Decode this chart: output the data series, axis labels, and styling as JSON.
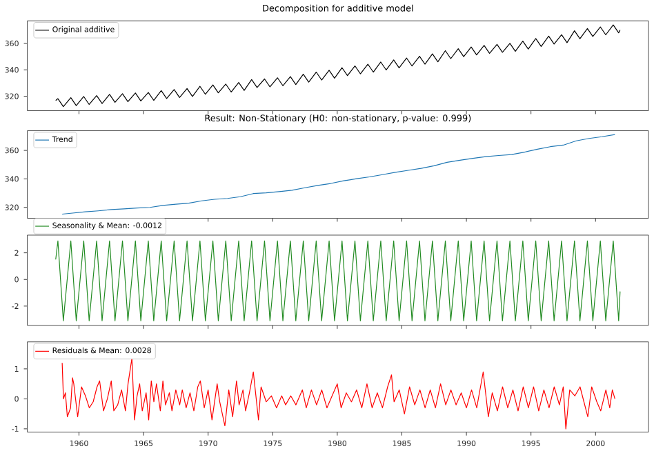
{
  "chart_data": [
    {
      "type": "line",
      "title": "Decomposition for additive model",
      "legend": "top left",
      "tick_labels": "y",
      "xlim": [
        1956.0,
        2004.1
      ],
      "ylim": [
        309.1,
        377.1
      ],
      "xticks": [
        1960,
        1965,
        1970,
        1975,
        1980,
        1985,
        1990,
        1995,
        2000
      ],
      "yticks": [
        320,
        340,
        360
      ],
      "x": [
        1958.2,
        1958.37,
        1958.79,
        1959.37,
        1959.79,
        1960.37,
        1960.79,
        1961.37,
        1961.79,
        1962.37,
        1962.79,
        1963.37,
        1963.79,
        1964.37,
        1964.79,
        1965.37,
        1965.79,
        1966.37,
        1966.79,
        1967.37,
        1967.79,
        1968.37,
        1968.79,
        1969.37,
        1969.79,
        1970.37,
        1970.79,
        1971.37,
        1971.79,
        1972.37,
        1972.79,
        1973.37,
        1973.79,
        1974.37,
        1974.79,
        1975.37,
        1975.79,
        1976.37,
        1976.79,
        1977.37,
        1977.79,
        1978.37,
        1978.79,
        1979.37,
        1979.79,
        1980.37,
        1980.79,
        1981.37,
        1981.79,
        1982.37,
        1982.79,
        1983.37,
        1983.79,
        1984.37,
        1984.79,
        1985.37,
        1985.79,
        1986.37,
        1986.79,
        1987.37,
        1987.79,
        1988.37,
        1988.79,
        1989.37,
        1989.79,
        1990.37,
        1990.79,
        1991.37,
        1991.79,
        1992.37,
        1992.79,
        1993.37,
        1993.79,
        1994.37,
        1994.79,
        1995.37,
        1995.79,
        1996.37,
        1996.79,
        1997.37,
        1997.79,
        1998.37,
        1998.79,
        1999.37,
        1999.79,
        2000.37,
        2000.79,
        2001.37,
        2001.79,
        2001.9
      ],
      "series": [
        {
          "name": "Original additive",
          "color": "#000000",
          "values": [
            316.8,
            318.2,
            312.2,
            318.9,
            312.9,
            319.8,
            313.8,
            320.5,
            314.5,
            321.4,
            315.4,
            321.9,
            315.9,
            322.5,
            316.5,
            322.9,
            316.9,
            324.3,
            318.3,
            325.1,
            319.1,
            325.9,
            319.9,
            327.5,
            321.5,
            328.6,
            322.6,
            329.2,
            323.2,
            330.4,
            324.4,
            332.6,
            326.6,
            333.1,
            327.1,
            334.0,
            328.0,
            334.9,
            328.9,
            336.7,
            330.7,
            338.3,
            332.3,
            339.7,
            333.7,
            341.6,
            335.6,
            343.0,
            337.0,
            344.3,
            338.3,
            345.9,
            339.9,
            347.5,
            341.5,
            348.9,
            342.9,
            350.3,
            344.3,
            352.1,
            346.1,
            354.5,
            348.5,
            356.0,
            350.0,
            357.3,
            351.3,
            358.5,
            352.5,
            359.3,
            353.3,
            360.0,
            354.0,
            361.7,
            355.7,
            363.7,
            357.7,
            365.5,
            359.5,
            366.6,
            360.6,
            369.6,
            363.6,
            371.3,
            365.3,
            372.5,
            366.5,
            374.0,
            368.0,
            370.2
          ]
        }
      ]
    },
    {
      "type": "line",
      "title": "Result: Non-Stationary (H0: non-stationary, p-value: 0.999)",
      "legend": "top left",
      "tick_labels": "y",
      "xlim": [
        1956.0,
        2004.1
      ],
      "ylim": [
        312.4,
        373.8
      ],
      "xticks": [
        1960,
        1965,
        1970,
        1975,
        1980,
        1985,
        1990,
        1995,
        2000
      ],
      "yticks": [
        320,
        340,
        360
      ],
      "x": [
        1958.7,
        1959.5,
        1960.5,
        1961.5,
        1962.5,
        1963.5,
        1964.5,
        1965.5,
        1966.5,
        1967.5,
        1968.5,
        1969.5,
        1970.5,
        1971.5,
        1972.5,
        1973.5,
        1974.5,
        1975.5,
        1976.5,
        1977.5,
        1978.5,
        1979.5,
        1980.5,
        1981.5,
        1982.5,
        1983.5,
        1984.5,
        1985.5,
        1986.5,
        1987.5,
        1988.5,
        1989.5,
        1990.5,
        1991.5,
        1992.5,
        1993.5,
        1994.5,
        1995.5,
        1996.5,
        1997.5,
        1998.5,
        1999.5,
        2000.5,
        2001.5
      ],
      "series": [
        {
          "name": "Trend",
          "color": "#1f77b4",
          "values": [
            315.3,
            316.0,
            316.9,
            317.6,
            318.5,
            319.0,
            319.6,
            320.0,
            321.4,
            322.2,
            323.0,
            324.6,
            325.7,
            326.3,
            327.5,
            329.7,
            330.2,
            331.1,
            332.0,
            333.8,
            335.4,
            336.8,
            338.7,
            340.1,
            341.4,
            343.0,
            344.6,
            346.0,
            347.4,
            349.2,
            351.6,
            353.1,
            354.4,
            355.6,
            356.4,
            357.1,
            358.8,
            360.8,
            362.6,
            363.7,
            366.7,
            368.4,
            369.6,
            371.1
          ]
        }
      ]
    },
    {
      "type": "line",
      "legend": "top left",
      "tick_labels": "y",
      "xlim": [
        1956.0,
        2004.1
      ],
      "ylim": [
        -3.45,
        3.33
      ],
      "xticks": [
        1960,
        1965,
        1970,
        1975,
        1980,
        1985,
        1990,
        1995,
        2000
      ],
      "yticks": [
        -2,
        0,
        2
      ],
      "x": [
        1958.2,
        1958.37,
        1958.79,
        1959.37,
        1959.79,
        1960.37,
        1960.79,
        1961.37,
        1961.79,
        1962.37,
        1962.79,
        1963.37,
        1963.79,
        1964.37,
        1964.79,
        1965.37,
        1965.79,
        1966.37,
        1966.79,
        1967.37,
        1967.79,
        1968.37,
        1968.79,
        1969.37,
        1969.79,
        1970.37,
        1970.79,
        1971.37,
        1971.79,
        1972.37,
        1972.79,
        1973.37,
        1973.79,
        1974.37,
        1974.79,
        1975.37,
        1975.79,
        1976.37,
        1976.79,
        1977.37,
        1977.79,
        1978.37,
        1978.79,
        1979.37,
        1979.79,
        1980.37,
        1980.79,
        1981.37,
        1981.79,
        1982.37,
        1982.79,
        1983.37,
        1983.79,
        1984.37,
        1984.79,
        1985.37,
        1985.79,
        1986.37,
        1986.79,
        1987.37,
        1987.79,
        1988.37,
        1988.79,
        1989.37,
        1989.79,
        1990.37,
        1990.79,
        1991.37,
        1991.79,
        1992.37,
        1992.79,
        1993.37,
        1993.79,
        1994.37,
        1994.79,
        1995.37,
        1995.79,
        1996.37,
        1996.79,
        1997.37,
        1997.79,
        1998.37,
        1998.79,
        1999.37,
        1999.79,
        2000.37,
        2000.79,
        2001.37,
        2001.79,
        2001.9
      ],
      "series": [
        {
          "name": "Seasonality & Mean: -0.0012",
          "color": "#228b22",
          "values": [
            1.5,
            2.9,
            -3.1,
            2.9,
            -3.1,
            2.9,
            -3.1,
            2.9,
            -3.1,
            2.9,
            -3.1,
            2.9,
            -3.1,
            2.9,
            -3.1,
            2.9,
            -3.1,
            2.9,
            -3.1,
            2.9,
            -3.1,
            2.9,
            -3.1,
            2.9,
            -3.1,
            2.9,
            -3.1,
            2.9,
            -3.1,
            2.9,
            -3.1,
            2.9,
            -3.1,
            2.9,
            -3.1,
            2.9,
            -3.1,
            2.9,
            -3.1,
            2.9,
            -3.1,
            2.9,
            -3.1,
            2.9,
            -3.1,
            2.9,
            -3.1,
            2.9,
            -3.1,
            2.9,
            -3.1,
            2.9,
            -3.1,
            2.9,
            -3.1,
            2.9,
            -3.1,
            2.9,
            -3.1,
            2.9,
            -3.1,
            2.9,
            -3.1,
            2.9,
            -3.1,
            2.9,
            -3.1,
            2.9,
            -3.1,
            2.9,
            -3.1,
            2.9,
            -3.1,
            2.9,
            -3.1,
            2.9,
            -3.1,
            2.9,
            -3.1,
            2.9,
            -3.1,
            2.9,
            -3.1,
            2.9,
            -3.1,
            2.9,
            -3.1,
            2.9,
            -3.1,
            -0.9
          ]
        }
      ]
    },
    {
      "type": "line",
      "legend": "top left",
      "xlim": [
        1956.0,
        2004.1
      ],
      "ylim": [
        -1.11,
        1.9
      ],
      "xticks": [
        1960,
        1965,
        1970,
        1975,
        1980,
        1985,
        1990,
        1995,
        2000
      ],
      "yticks": [
        -1,
        0,
        1
      ],
      "x": [
        1958.7,
        1958.8,
        1958.95,
        1959.1,
        1959.35,
        1959.5,
        1959.6,
        1959.9,
        1960.2,
        1960.5,
        1960.8,
        1961.1,
        1961.4,
        1961.6,
        1961.9,
        1962.2,
        1962.5,
        1962.7,
        1963.0,
        1963.3,
        1963.6,
        1963.8,
        1964.1,
        1964.3,
        1964.5,
        1964.7,
        1964.9,
        1965.2,
        1965.4,
        1965.6,
        1965.8,
        1966.0,
        1966.3,
        1966.5,
        1966.7,
        1967.0,
        1967.2,
        1967.5,
        1967.8,
        1968.0,
        1968.3,
        1968.6,
        1968.9,
        1969.2,
        1969.4,
        1969.7,
        1970.0,
        1970.3,
        1970.7,
        1970.9,
        1971.3,
        1971.6,
        1971.9,
        1972.2,
        1972.4,
        1972.7,
        1972.9,
        1973.2,
        1973.5,
        1973.7,
        1973.9,
        1974.1,
        1974.5,
        1974.9,
        1975.3,
        1975.7,
        1976.0,
        1976.4,
        1976.8,
        1977.3,
        1977.6,
        1978.0,
        1978.4,
        1978.8,
        1979.2,
        1979.6,
        1980.0,
        1980.3,
        1980.7,
        1981.1,
        1981.5,
        1981.9,
        1982.3,
        1982.7,
        1983.1,
        1983.5,
        1983.9,
        1984.2,
        1984.4,
        1984.8,
        1985.2,
        1985.6,
        1986.0,
        1986.4,
        1986.8,
        1987.2,
        1987.6,
        1988.0,
        1988.4,
        1988.8,
        1989.2,
        1989.6,
        1990.0,
        1990.4,
        1990.8,
        1991.3,
        1991.7,
        1992.0,
        1992.4,
        1992.8,
        1993.2,
        1993.6,
        1994.0,
        1994.4,
        1994.8,
        1995.2,
        1995.6,
        1996.0,
        1996.4,
        1996.8,
        1997.2,
        1997.5,
        1997.7,
        1998.0,
        1998.4,
        1998.8,
        1999.1,
        1999.4,
        1999.7,
        2000.1,
        2000.4,
        2000.8,
        2001.1,
        2001.3,
        2001.5
      ],
      "series": [
        {
          "name": "Residuals & Mean: 0.0028",
          "color": "#ff0000",
          "values": [
            1.2,
            0.0,
            0.2,
            -0.6,
            -0.3,
            0.7,
            0.5,
            -0.6,
            0.4,
            0.1,
            -0.3,
            -0.1,
            0.4,
            0.6,
            -0.4,
            0.0,
            0.6,
            -0.4,
            -0.2,
            0.3,
            -0.4,
            0.5,
            1.35,
            -0.7,
            0.1,
            0.5,
            -0.4,
            0.2,
            -0.7,
            0.6,
            -0.1,
            0.5,
            -0.4,
            0.6,
            -0.2,
            0.2,
            -0.4,
            0.3,
            -0.2,
            0.3,
            -0.3,
            0.2,
            -0.4,
            0.4,
            0.6,
            -0.3,
            0.3,
            -0.7,
            0.5,
            -0.1,
            -0.9,
            0.3,
            -0.6,
            0.6,
            -0.2,
            0.3,
            -0.4,
            0.2,
            0.9,
            0.1,
            -0.7,
            0.4,
            -0.1,
            0.1,
            -0.3,
            0.1,
            -0.2,
            0.1,
            -0.2,
            0.3,
            -0.3,
            0.3,
            -0.2,
            0.3,
            -0.3,
            0.1,
            0.5,
            -0.3,
            0.2,
            -0.1,
            0.3,
            -0.3,
            0.5,
            -0.3,
            0.2,
            -0.3,
            0.4,
            0.8,
            -0.1,
            0.3,
            -0.5,
            0.4,
            -0.2,
            0.3,
            -0.3,
            0.3,
            -0.3,
            0.5,
            -0.2,
            0.3,
            -0.2,
            0.2,
            -0.3,
            0.3,
            -0.3,
            0.9,
            -0.6,
            0.2,
            -0.4,
            0.4,
            -0.3,
            0.3,
            -0.4,
            0.4,
            -0.3,
            0.4,
            -0.4,
            0.3,
            -0.3,
            0.4,
            -0.2,
            0.4,
            -1.0,
            0.3,
            0.1,
            0.4,
            -0.1,
            -0.6,
            0.4,
            -0.1,
            -0.4,
            0.3,
            -0.3,
            0.3,
            0.0
          ]
        }
      ]
    }
  ]
}
